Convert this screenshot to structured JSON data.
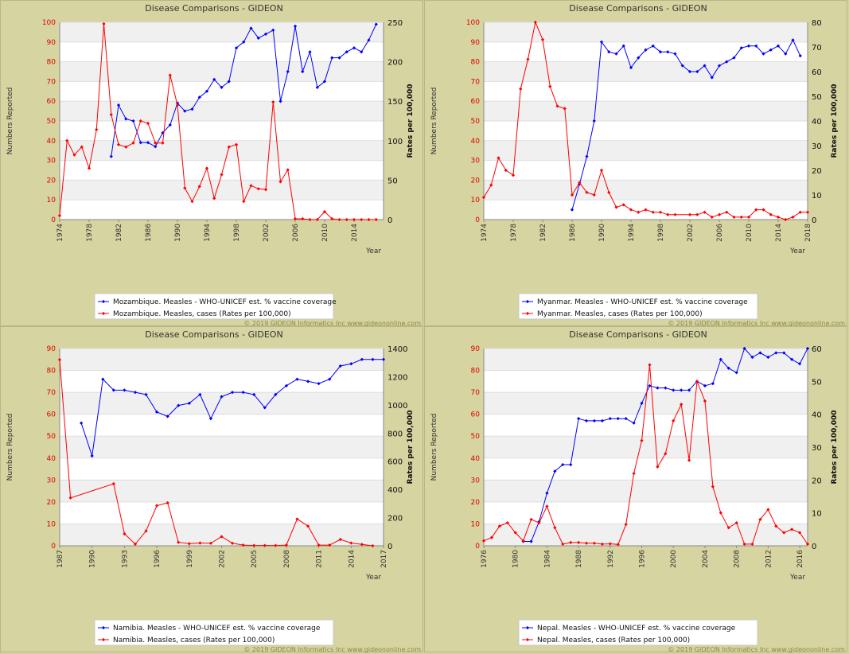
{
  "footer": "© 2019 GIDEON Informatics Inc www.gideononline.com",
  "colors": {
    "series1": "#0000ff",
    "series2": "#ff0000",
    "band": "#f0f0f0",
    "plot": "#ffffff",
    "bg": "#d6d4a0"
  },
  "chart_data": [
    {
      "type": "line",
      "title": "Disease Comparisons - GIDEON",
      "xlabel": "Year",
      "ylabel_left": "Numbers Reported",
      "ylabel_right": "Rates per 100,000",
      "xlim": [
        1974,
        2018
      ],
      "xticks": [
        1974,
        1978,
        1982,
        1986,
        1990,
        1994,
        1998,
        2002,
        2006,
        2010,
        2014
      ],
      "ylim_left": [
        0,
        100
      ],
      "yticks_left": [
        0,
        10,
        20,
        30,
        40,
        50,
        60,
        70,
        80,
        90,
        100
      ],
      "ylim_right": [
        0,
        250
      ],
      "yticks_right": [
        0,
        50,
        100,
        150,
        200,
        250
      ],
      "series": [
        {
          "name": "Mozambique. Measles - WHO-UNICEF est. % vaccine coverage",
          "axis": "left",
          "x": [
            1981,
            1982,
            1983,
            1984,
            1985,
            1986,
            1987,
            1988,
            1989,
            1990,
            1991,
            1992,
            1993,
            1994,
            1995,
            1996,
            1997,
            1998,
            1999,
            2000,
            2001,
            2002,
            2003,
            2004,
            2005,
            2006,
            2007,
            2008,
            2009,
            2010,
            2011,
            2012,
            2013,
            2014,
            2015,
            2016,
            2017
          ],
          "y": [
            32,
            58,
            51,
            50,
            39,
            39,
            37,
            44,
            48,
            59,
            55,
            56,
            62,
            65,
            71,
            67,
            70,
            87,
            90,
            97,
            92,
            94,
            96,
            60,
            75,
            98,
            75,
            85,
            67,
            70,
            82,
            82,
            85,
            87,
            85,
            91,
            99
          ]
        },
        {
          "name": "Mozambique. Measles, cases (Rates per 100,000)",
          "axis": "right",
          "x": [
            1974,
            1975,
            1976,
            1977,
            1978,
            1979,
            1980,
            1981,
            1982,
            1983,
            1984,
            1985,
            1986,
            1987,
            1988,
            1989,
            1990,
            1991,
            1992,
            1993,
            1994,
            1995,
            1996,
            1997,
            1998,
            1999,
            2000,
            2001,
            2002,
            2003,
            2004,
            2005,
            2006,
            2007,
            2008,
            2009,
            2010,
            2011,
            2012,
            2013,
            2014,
            2015,
            2016,
            2017
          ],
          "y": [
            5,
            100,
            82,
            92,
            65,
            114,
            248,
            133,
            95,
            92,
            97,
            125,
            122,
            97,
            97,
            183,
            145,
            40,
            23,
            42,
            65,
            27,
            57,
            92,
            95,
            23,
            43,
            39,
            38,
            149,
            48,
            63,
            1,
            1,
            0,
            0,
            10,
            1,
            0,
            0,
            0,
            0,
            0,
            0
          ]
        }
      ],
      "legend": "bottom"
    },
    {
      "type": "line",
      "title": "Disease Comparisons - GIDEON",
      "xlabel": "Year",
      "ylabel_left": "Numbers Reported",
      "ylabel_right": "Rates per 100,000",
      "xlim": [
        1974,
        2018
      ],
      "xticks": [
        1974,
        1978,
        1982,
        1986,
        1990,
        1994,
        1998,
        2002,
        2006,
        2010,
        2014,
        2018
      ],
      "ylim_left": [
        0,
        100
      ],
      "yticks_left": [
        0,
        10,
        20,
        30,
        40,
        50,
        60,
        70,
        80,
        90,
        100
      ],
      "ylim_right": [
        0,
        80
      ],
      "yticks_right": [
        0,
        10,
        20,
        30,
        40,
        50,
        60,
        70,
        80
      ],
      "series": [
        {
          "name": "Myanmar. Measles - WHO-UNICEF est. % vaccine coverage",
          "axis": "left",
          "x": [
            1986,
            1987,
            1988,
            1989,
            1990,
            1991,
            1992,
            1993,
            1994,
            1995,
            1996,
            1997,
            1998,
            1999,
            2000,
            2001,
            2002,
            2003,
            2004,
            2005,
            2006,
            2007,
            2008,
            2009,
            2010,
            2011,
            2012,
            2013,
            2014,
            2015,
            2016,
            2017
          ],
          "y": [
            5,
            18,
            32,
            50,
            90,
            85,
            84,
            88,
            77,
            82,
            86,
            88,
            85,
            85,
            84,
            78,
            75,
            75,
            78,
            72,
            78,
            80,
            82,
            87,
            88,
            88,
            84,
            86,
            88,
            84,
            91,
            83
          ]
        },
        {
          "name": "Myanmar. Measles, cases (Rates per 100,000)",
          "axis": "right",
          "x": [
            1974,
            1975,
            1976,
            1977,
            1978,
            1979,
            1980,
            1981,
            1982,
            1983,
            1984,
            1985,
            1986,
            1987,
            1988,
            1989,
            1990,
            1991,
            1992,
            1993,
            1994,
            1995,
            1996,
            1997,
            1998,
            1999,
            2000,
            2002,
            2003,
            2004,
            2005,
            2006,
            2007,
            2008,
            2009,
            2010,
            2011,
            2012,
            2013,
            2014,
            2015,
            2016,
            2017,
            2018
          ],
          "y": [
            9,
            14,
            25,
            20,
            18,
            53,
            65,
            80,
            73,
            54,
            46,
            45,
            10,
            15,
            11,
            10,
            20,
            11,
            5,
            6,
            4,
            3,
            4,
            3,
            3,
            2,
            2,
            2,
            2,
            3,
            1,
            2,
            3,
            1,
            1,
            1,
            4,
            4,
            2,
            1,
            0,
            1,
            3,
            3
          ]
        }
      ],
      "legend": "bottom"
    },
    {
      "type": "line",
      "title": "Disease Comparisons - GIDEON",
      "xlabel": "Year",
      "ylabel_left": "Numbers Reported",
      "ylabel_right": "Rates per 100,000",
      "xlim": [
        1987,
        2017
      ],
      "xticks": [
        1987,
        1990,
        1993,
        1996,
        1999,
        2002,
        2005,
        2008,
        2011,
        2014,
        2017
      ],
      "ylim_left": [
        0,
        90
      ],
      "yticks_left": [
        0,
        10,
        20,
        30,
        40,
        50,
        60,
        70,
        80,
        90
      ],
      "ylim_right": [
        0,
        1400
      ],
      "yticks_right": [
        0,
        200,
        400,
        600,
        800,
        1000,
        1200,
        1400
      ],
      "series": [
        {
          "name": "Namibia. Measles - WHO-UNICEF est. % vaccine coverage",
          "axis": "left",
          "x": [
            1989,
            1990,
            1991,
            1992,
            1993,
            1994,
            1995,
            1996,
            1997,
            1998,
            1999,
            2000,
            2001,
            2002,
            2003,
            2004,
            2005,
            2006,
            2007,
            2008,
            2009,
            2010,
            2011,
            2012,
            2013,
            2014,
            2015,
            2016,
            2017
          ],
          "y": [
            56,
            41,
            76,
            71,
            71,
            70,
            69,
            61,
            59,
            64,
            65,
            69,
            58,
            68,
            70,
            70,
            69,
            63,
            69,
            73,
            76,
            75,
            74,
            76,
            82,
            83,
            85,
            85,
            85
          ]
        },
        {
          "name": "Namibia. Measles, cases (Rates per 100,000)",
          "axis": "right",
          "x": [
            1987,
            1988,
            1992,
            1993,
            1994,
            1995,
            1996,
            1997,
            1998,
            1999,
            2000,
            2001,
            2002,
            2003,
            2004,
            2005,
            2006,
            2007,
            2008,
            2009,
            2010,
            2011,
            2012,
            2013,
            2014,
            2015,
            2016
          ],
          "y": [
            1320,
            340,
            440,
            85,
            12,
            105,
            285,
            305,
            25,
            15,
            20,
            18,
            65,
            18,
            5,
            2,
            2,
            2,
            5,
            190,
            140,
            5,
            5,
            45,
            20,
            10,
            0
          ]
        }
      ],
      "legend": "bottom"
    },
    {
      "type": "line",
      "title": "Disease Comparisons - GIDEON",
      "xlabel": "Year",
      "ylabel_left": "Numbers Reported",
      "ylabel_right": "Rates per 100,000",
      "xlim": [
        1976,
        2017
      ],
      "xticks": [
        1976,
        1980,
        1984,
        1988,
        1992,
        1996,
        2000,
        2004,
        2008,
        2012,
        2016
      ],
      "ylim_left": [
        0,
        90
      ],
      "yticks_left": [
        0,
        10,
        20,
        30,
        40,
        50,
        60,
        70,
        80,
        90
      ],
      "ylim_right": [
        0,
        60
      ],
      "yticks_right": [
        0,
        10,
        20,
        30,
        40,
        50,
        60
      ],
      "series": [
        {
          "name": "Nepal. Measles - WHO-UNICEF est. % vaccine coverage",
          "axis": "left",
          "x": [
            1981,
            1982,
            1983,
            1984,
            1985,
            1986,
            1987,
            1988,
            1989,
            1990,
            1991,
            1992,
            1993,
            1994,
            1995,
            1996,
            1997,
            1998,
            1999,
            2000,
            2001,
            2002,
            2003,
            2004,
            2005,
            2006,
            2007,
            2008,
            2009,
            2010,
            2011,
            2012,
            2013,
            2014,
            2015,
            2016,
            2017
          ],
          "y": [
            2,
            2,
            11,
            24,
            34,
            37,
            37,
            58,
            57,
            57,
            57,
            58,
            58,
            58,
            56,
            65,
            73,
            72,
            72,
            71,
            71,
            71,
            75,
            73,
            74,
            85,
            81,
            79,
            90,
            86,
            88,
            86,
            88,
            88,
            85,
            83,
            90
          ]
        },
        {
          "name": "Nepal. Measles, cases (Rates per 100,000)",
          "axis": "right",
          "x": [
            1976,
            1977,
            1978,
            1979,
            1980,
            1981,
            1982,
            1983,
            1984,
            1985,
            1986,
            1987,
            1988,
            1989,
            1990,
            1991,
            1992,
            1993,
            1994,
            1995,
            1996,
            1997,
            1998,
            1999,
            2000,
            2001,
            2002,
            2003,
            2004,
            2005,
            2006,
            2007,
            2008,
            2009,
            2010,
            2011,
            2012,
            2013,
            2014,
            2015,
            2016,
            2017
          ],
          "y": [
            1.5,
            2.5,
            6,
            7,
            4,
            1.5,
            8,
            7,
            12,
            5.5,
            0.5,
            1,
            1,
            0.8,
            0.8,
            0.5,
            0.6,
            0.4,
            6.5,
            22,
            32,
            55,
            24,
            28,
            38,
            43,
            26,
            50,
            44,
            18,
            10,
            5.5,
            7,
            0.5,
            0.5,
            8,
            11,
            6,
            4,
            5,
            4,
            0.5
          ]
        }
      ],
      "legend": "bottom"
    }
  ]
}
